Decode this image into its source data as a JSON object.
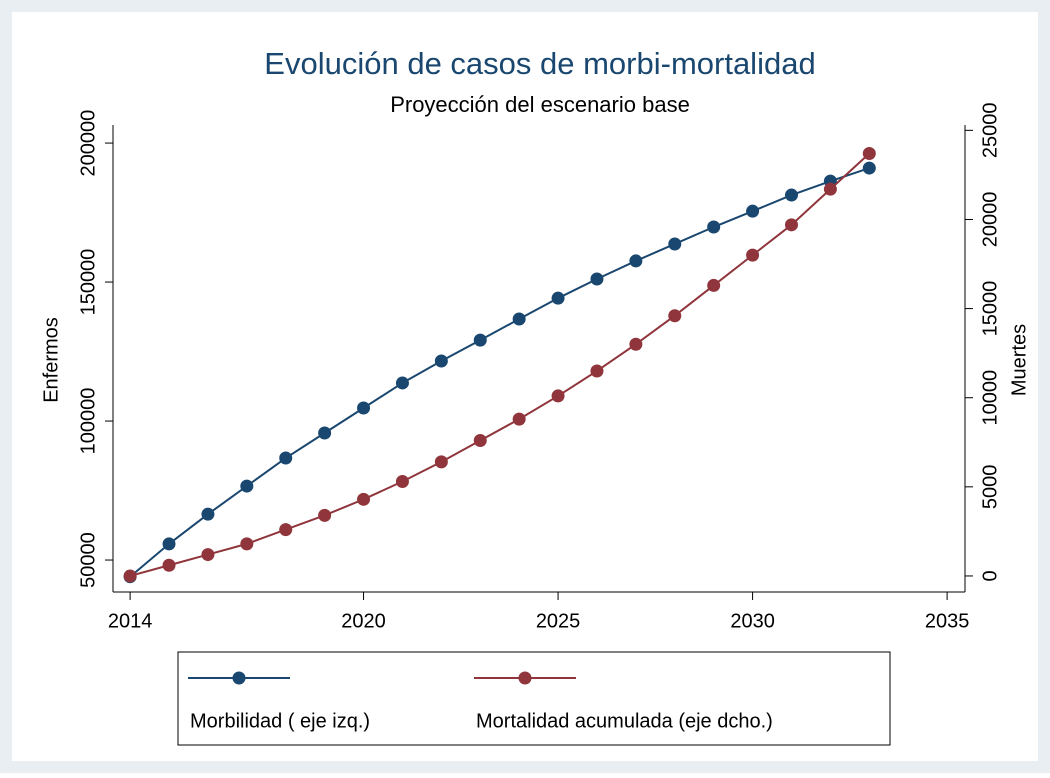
{
  "chart_data": {
    "type": "line",
    "title": "Evolución de casos de morbi-mortalidad",
    "subtitle": "Proyección del escenario base",
    "y_label": "Enfermos",
    "y2_label": "Muertes",
    "x": [
      2014,
      2015,
      2016,
      2017,
      2018,
      2019,
      2020,
      2021,
      2022,
      2023,
      2024,
      2025,
      2026,
      2027,
      2028,
      2029,
      2030,
      2031,
      2032,
      2033
    ],
    "series": [
      {
        "name": "Morbilidad ( eje izq.)",
        "color": "#1a476f",
        "axis": "y",
        "values": [
          44000,
          55800,
          66500,
          76600,
          86700,
          95700,
          104700,
          113700,
          121600,
          129100,
          136700,
          144200,
          151100,
          157600,
          163700,
          169800,
          175500,
          181300,
          186300,
          191000
        ]
      },
      {
        "name": "Mortalidad acumulada (eje dcho.)",
        "color": "#90353b",
        "axis": "y2",
        "values": [
          0,
          600,
          1200,
          1800,
          2600,
          3400,
          4300,
          5300,
          6400,
          7600,
          8800,
          10100,
          11500,
          13000,
          14600,
          16300,
          18000,
          19700,
          21700,
          23700
        ]
      }
    ],
    "xlim": [
      2013.56,
      2035.46
    ],
    "xticks": [
      2014,
      2020,
      2025,
      2030,
      2035
    ],
    "ylim": [
      38500,
      206500
    ],
    "yticks": [
      50000,
      100000,
      150000,
      200000
    ],
    "y2lim": [
      -900,
      25300
    ],
    "y2ticks": [
      0,
      5000,
      10000,
      15000,
      20000,
      25000
    ],
    "grid": false,
    "legend": "bottom"
  }
}
